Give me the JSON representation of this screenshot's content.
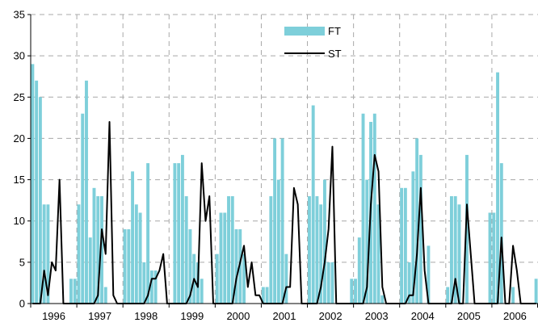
{
  "chart_data": {
    "type": "bar",
    "title": "",
    "xlabel": "",
    "ylabel": "",
    "ylim": [
      0,
      35
    ],
    "yticks": [
      0,
      5,
      10,
      15,
      20,
      25,
      30,
      35
    ],
    "grid": {
      "x": "dashed",
      "y": "dashed"
    },
    "legend": {
      "placement": "top-center",
      "entries": [
        {
          "name": "FT",
          "mark": "bar",
          "color": "#7ecfda"
        },
        {
          "name": "ST",
          "mark": "line",
          "color": "#000000"
        }
      ]
    },
    "months_per_year": 12,
    "years": [
      "1996",
      "1997",
      "1998",
      "1999",
      "2000",
      "2001",
      "2002",
      "2003",
      "2004",
      "2005",
      "2006"
    ],
    "series": [
      {
        "name": "FT",
        "type": "bar",
        "color": "#7ecfda",
        "values": [
          29,
          27,
          25,
          12,
          12,
          0,
          0,
          0,
          0,
          0,
          3,
          3,
          12,
          23,
          27,
          8,
          14,
          13,
          13,
          2,
          0,
          0,
          0,
          0,
          9,
          9,
          16,
          12,
          11,
          5,
          17,
          4,
          4,
          0,
          0,
          0,
          0,
          17,
          17,
          18,
          13,
          9,
          6,
          5,
          3,
          0,
          0,
          0,
          6,
          11,
          11,
          13,
          13,
          9,
          9,
          6,
          0,
          0,
          0,
          0,
          2,
          2,
          13,
          20,
          15,
          20,
          6,
          0,
          0,
          0,
          0,
          0,
          13,
          24,
          13,
          12,
          15,
          5,
          5,
          0,
          0,
          0,
          0,
          3,
          3,
          8,
          23,
          15,
          22,
          23,
          12,
          1,
          0,
          0,
          0,
          0,
          14,
          14,
          5,
          16,
          20,
          18,
          0,
          7,
          0,
          0,
          0,
          0,
          2,
          13,
          13,
          12,
          0,
          18,
          0,
          0,
          0,
          0,
          0,
          11,
          11,
          28,
          17,
          0,
          0,
          2,
          0,
          0,
          0,
          0,
          0,
          3
        ]
      },
      {
        "name": "ST",
        "type": "line",
        "color": "#000000",
        "values": [
          0,
          0,
          0,
          4,
          1,
          5,
          4,
          15,
          0,
          0,
          0,
          0,
          0,
          0,
          0,
          0,
          0,
          1,
          9,
          6,
          22,
          1,
          0,
          0,
          0,
          0,
          0,
          0,
          0,
          0,
          1,
          3,
          3,
          4,
          6,
          0,
          0,
          0,
          0,
          0,
          0,
          1,
          3,
          2,
          17,
          10,
          13,
          0,
          0,
          0,
          0,
          0,
          0,
          3,
          5,
          7,
          2,
          5,
          1,
          1,
          0,
          0,
          0,
          0,
          0,
          0,
          2,
          2,
          14,
          12,
          0,
          0,
          0,
          0,
          0,
          2,
          5,
          9,
          19,
          0,
          0,
          0,
          0,
          0,
          0,
          0,
          0,
          2,
          12,
          18,
          16,
          2,
          0,
          0,
          0,
          0,
          0,
          0,
          1,
          1,
          6,
          14,
          4,
          0,
          0,
          0,
          0,
          0,
          0,
          0,
          3,
          0,
          0,
          12,
          6,
          0,
          0,
          0,
          0,
          0,
          0,
          0,
          8,
          0,
          0,
          7,
          4,
          0,
          0,
          0,
          0,
          0
        ]
      }
    ]
  }
}
